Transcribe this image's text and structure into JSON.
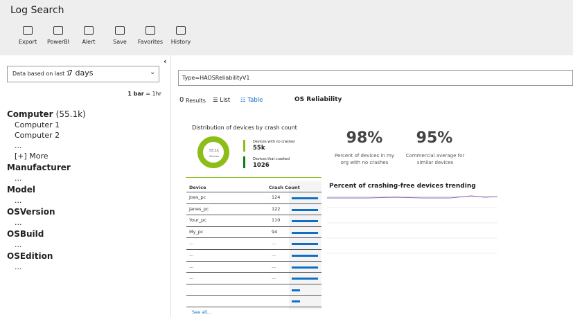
{
  "header": {
    "title": "Log Search"
  },
  "toolbar": [
    "Export",
    "PowerBI",
    "Alert",
    "Save",
    "Favorites",
    "History"
  ],
  "filter": {
    "prefix": "Data based on last 1",
    "value": "7 days",
    "bar_unit": "1 bar",
    "bar_scale": "= 1hr"
  },
  "facets": [
    {
      "name": "Computer",
      "count": "(55.1k)",
      "items": [
        "Computer 1",
        "Computer 2",
        "...",
        "[+] More"
      ]
    },
    {
      "name": "Manufacturer",
      "items": [
        "..."
      ]
    },
    {
      "name": "Model",
      "items": [
        "..."
      ]
    },
    {
      "name": "OSVersion",
      "items": [
        "..."
      ]
    },
    {
      "name": "OSBuild",
      "items": [
        "..."
      ]
    },
    {
      "name": "OSEdition",
      "items": [
        "..."
      ]
    }
  ],
  "query": "Type=HAOSReliabilityV1",
  "results": {
    "count": "0",
    "label": "Results",
    "list": "List",
    "table": "Table",
    "view_title": "OS Reliability"
  },
  "tile": {
    "donut_title": "Distribution of devices by crash count",
    "donut_center": "55.1k",
    "donut_sub": "Devices",
    "legend": [
      {
        "label": "Devices with no crashes",
        "value": "55k"
      },
      {
        "label": "Devices that crashed",
        "value": "1026"
      }
    ],
    "stats": [
      {
        "value": "98%",
        "label": "Percent of devices in my org with no crashes"
      },
      {
        "value": "95%",
        "label": "Commercial average for similar devices"
      }
    ],
    "table": {
      "headers": [
        "Device",
        "Crash Count"
      ],
      "rows": [
        [
          "Joes_pc",
          "124"
        ],
        [
          "Janes_pc",
          "122"
        ],
        [
          "Your_pc",
          "110"
        ],
        [
          "My_pc",
          "94"
        ],
        [
          "...",
          "..."
        ],
        [
          "...",
          "..."
        ],
        [
          "...",
          "..."
        ],
        [
          "...",
          "..."
        ]
      ],
      "see_all": "See all..."
    },
    "trend_title": "Percent of crashing-free devices trending"
  }
}
